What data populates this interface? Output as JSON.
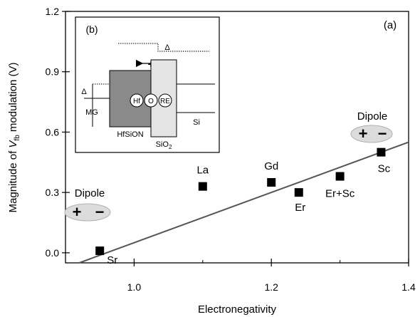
{
  "chart_data": {
    "type": "scatter",
    "panel_label": "(a)",
    "xlabel": "Electronegativity",
    "ylabel_prefix": "Magnitude of ",
    "ylabel_var": "V",
    "ylabel_sub": "fb",
    "ylabel_suffix": " modulation (V)",
    "xlim": [
      0.9,
      1.4
    ],
    "ylim": [
      -0.05,
      1.2
    ],
    "xticks": [
      1.0,
      1.2,
      1.4
    ],
    "xtick_labels": [
      "1.0",
      "1.2",
      "1.4"
    ],
    "yticks": [
      0.0,
      0.3,
      0.6,
      0.9,
      1.2
    ],
    "ytick_labels": [
      "0.0",
      "0.3",
      "0.6",
      "0.9",
      "1.2"
    ],
    "points": [
      {
        "label": "Sr",
        "x": 0.95,
        "y": 0.01
      },
      {
        "label": "La",
        "x": 1.1,
        "y": 0.33
      },
      {
        "label": "Gd",
        "x": 1.2,
        "y": 0.35
      },
      {
        "label": "Er",
        "x": 1.24,
        "y": 0.3
      },
      {
        "label": "Er+Sc",
        "x": 1.3,
        "y": 0.38
      },
      {
        "label": "Sc",
        "x": 1.36,
        "y": 0.5
      }
    ],
    "fit_line": {
      "x": [
        0.92,
        1.4
      ],
      "y": [
        -0.05,
        0.55
      ]
    },
    "dipole_left": {
      "label": "Dipole",
      "signs": [
        "+",
        "−"
      ]
    },
    "dipole_right": {
      "label": "Dipole",
      "signs": [
        "+",
        "−"
      ]
    },
    "inset": {
      "panel_label": "(b)",
      "delta": "Δ",
      "mg": "MG",
      "hfsion": "HfSiON",
      "sio2_base": "SiO",
      "sio2_sub": "2",
      "si": "Si",
      "atoms": [
        "Hf",
        "O",
        "RE"
      ]
    }
  }
}
